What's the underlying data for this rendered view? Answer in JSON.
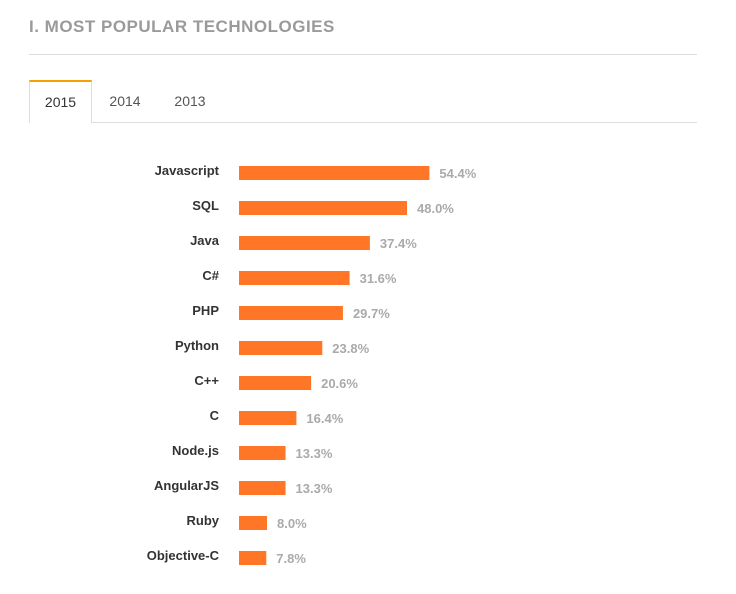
{
  "section": {
    "title": "I. MOST POPULAR TECHNOLOGIES"
  },
  "tabs": [
    {
      "label": "2015",
      "active": true
    },
    {
      "label": "2014",
      "active": false
    },
    {
      "label": "2013",
      "active": false
    }
  ],
  "colors": {
    "bar": "#ff7726",
    "active_tab_accent": "#f7a000",
    "title": "#9a9a9a",
    "value_label": "#aaaaaa",
    "category_label": "#333333"
  },
  "chart_data": {
    "type": "bar",
    "orientation": "horizontal",
    "title": "",
    "xlabel": "",
    "ylabel": "",
    "xlim": [
      0,
      100
    ],
    "grid": false,
    "legend": "none",
    "value_suffix": "%",
    "categories": [
      "Javascript",
      "SQL",
      "Java",
      "C#",
      "PHP",
      "Python",
      "C++",
      "C",
      "Node.js",
      "AngularJS",
      "Ruby",
      "Objective-C"
    ],
    "values": [
      54.4,
      48.0,
      37.4,
      31.6,
      29.7,
      23.8,
      20.6,
      16.4,
      13.3,
      13.3,
      8.0,
      7.8
    ],
    "value_labels": [
      "54.4%",
      "48.0%",
      "37.4%",
      "31.6%",
      "29.7%",
      "23.8%",
      "20.6%",
      "16.4%",
      "13.3%",
      "13.3%",
      "8.0%",
      "7.8%"
    ]
  }
}
